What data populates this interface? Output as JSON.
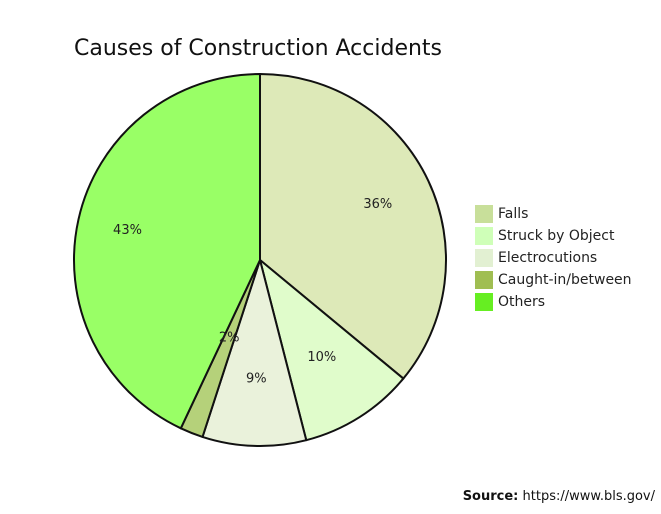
{
  "chart_data": {
    "type": "pie",
    "title": "Causes of Construction Accidents",
    "slices": [
      {
        "label": "Falls",
        "value": 36,
        "value_label": "36%",
        "color": "#dde9b8",
        "legend_color": "#c8df9a"
      },
      {
        "label": "Struck by Object",
        "value": 10,
        "value_label": "10%",
        "color": "#e0fccb",
        "legend_color": "#cfffb8"
      },
      {
        "label": "Electrocutions",
        "value": 9,
        "value_label": "9%",
        "color": "#eaf2db",
        "legend_color": "#e2f0d2"
      },
      {
        "label": "Caught-in/between",
        "value": 2,
        "value_label": "2%",
        "color": "#b5d17a",
        "legend_color": "#a0be52"
      },
      {
        "label": "Others",
        "value": 43,
        "value_label": "43%",
        "color": "#99ff66",
        "legend_color": "#66ee22"
      }
    ],
    "legend_position": "right"
  },
  "source": {
    "label": "Source:",
    "url": "https://www.bls.gov/"
  }
}
